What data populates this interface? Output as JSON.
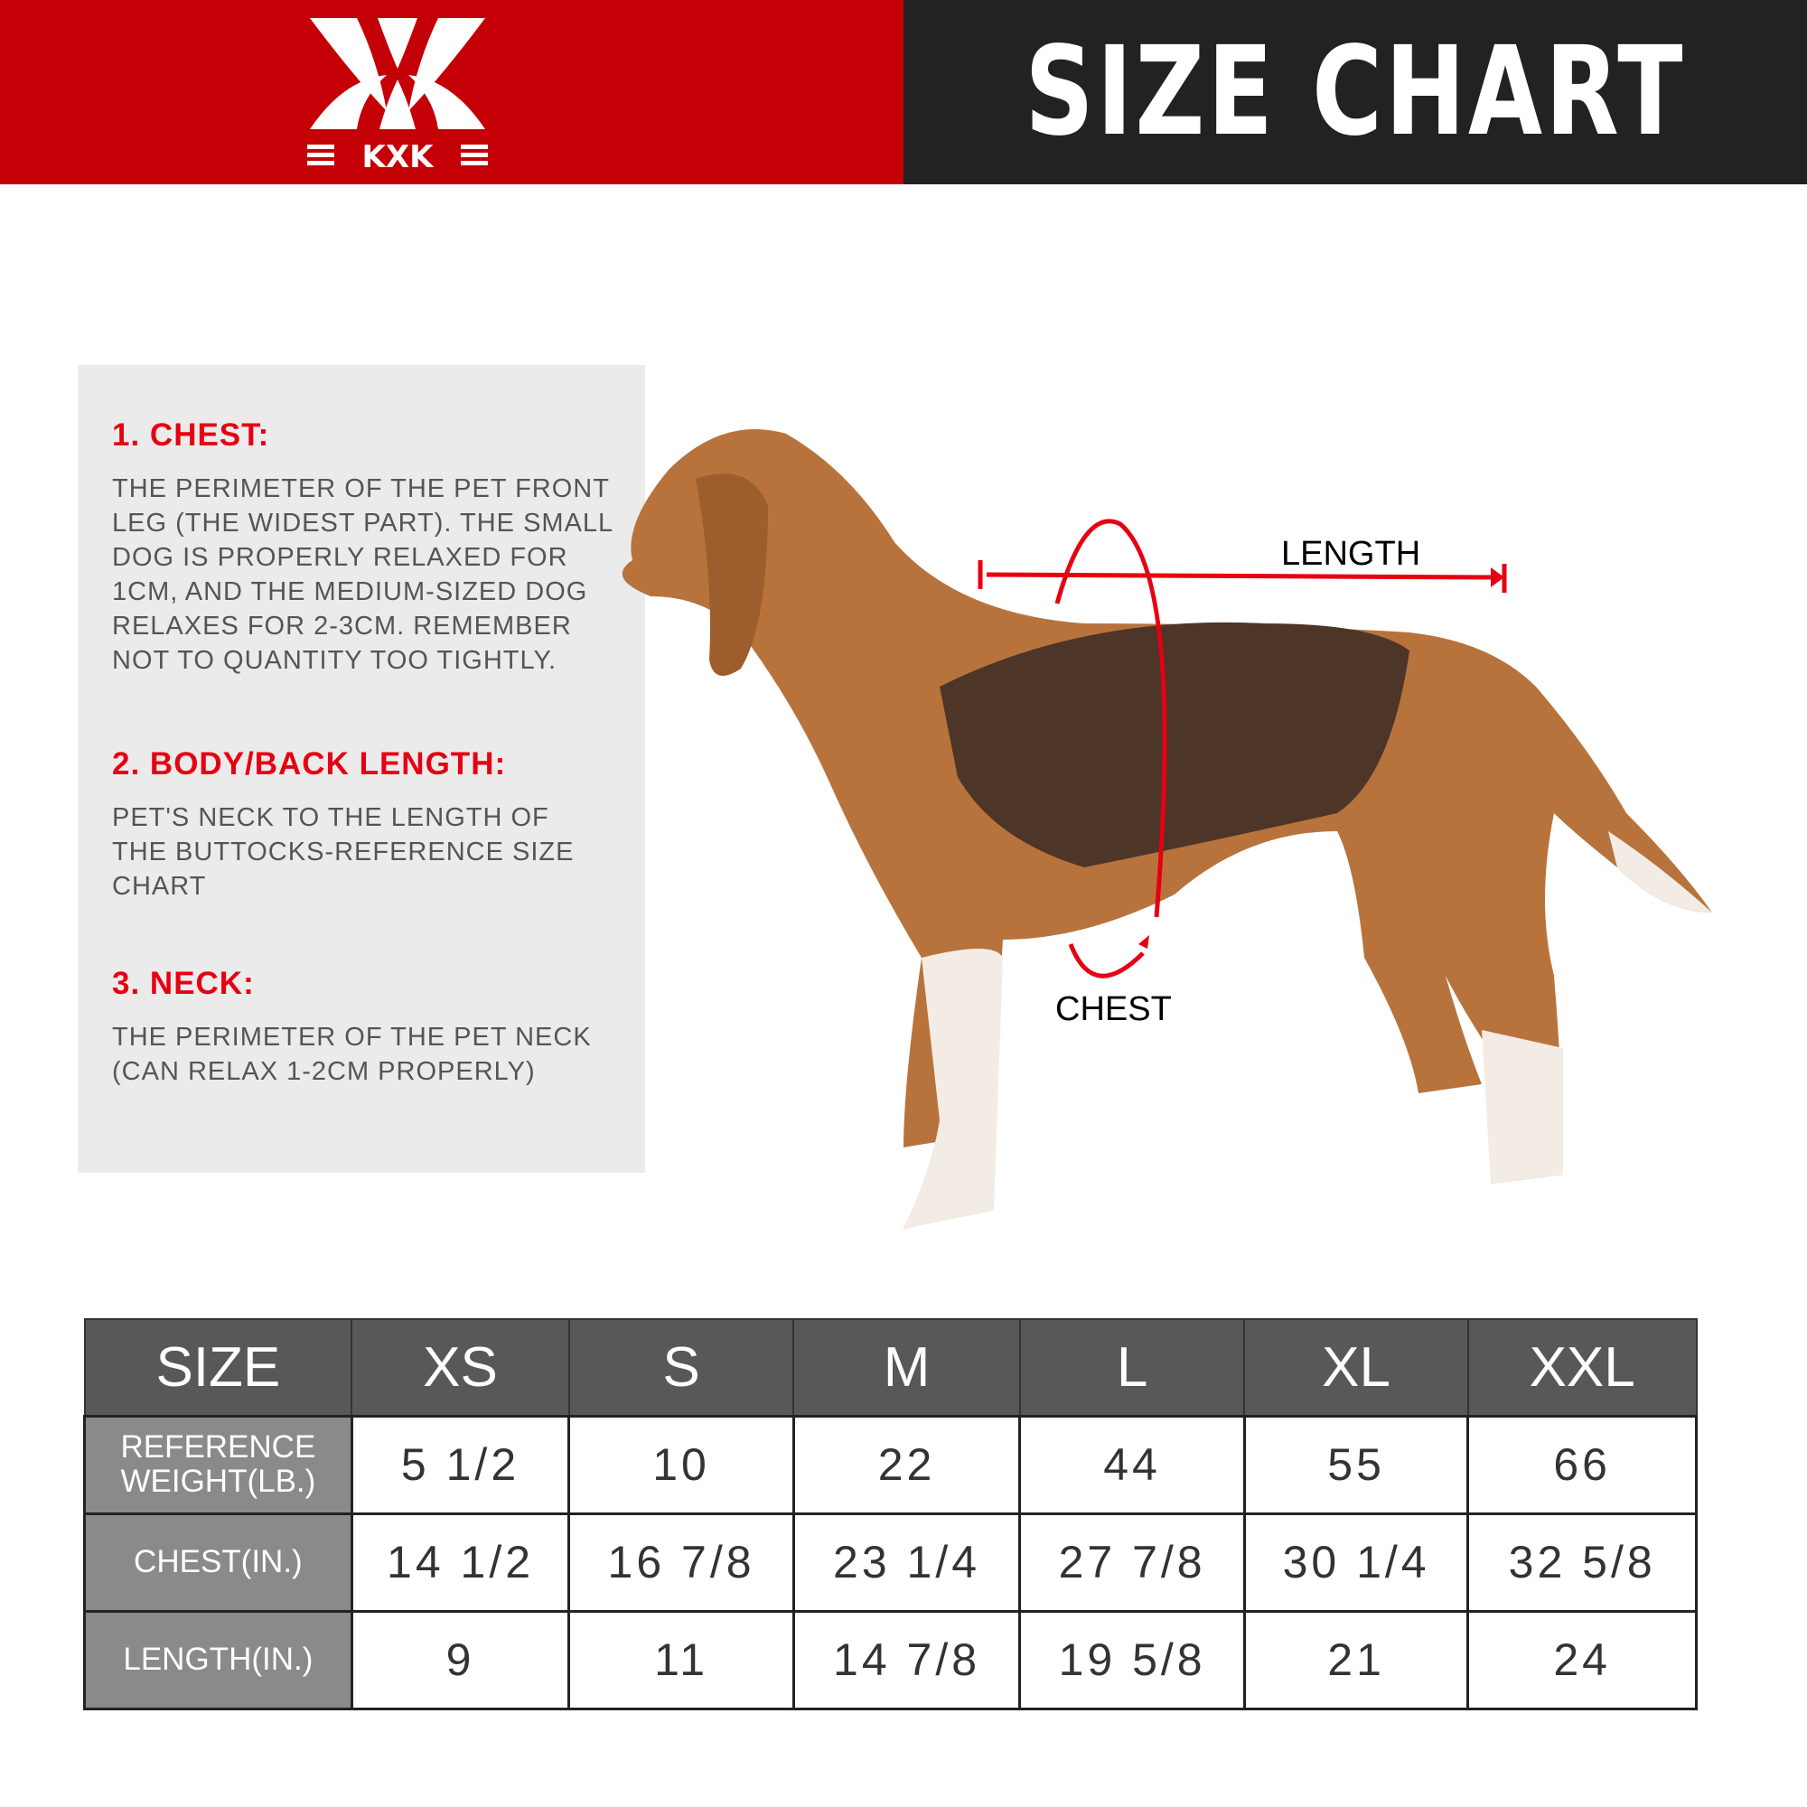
{
  "header": {
    "brand": "KXK",
    "title": "SIZE CHART",
    "colors": {
      "red": "#c40006",
      "dark": "#222222"
    }
  },
  "guide": [
    {
      "heading": "1. CHEST:",
      "text": "THE PERIMETER OF THE PET FRONT\nLEG (THE WIDEST PART). THE SMALL\nDOG IS PROPERLY RELAXED FOR\n1CM, AND THE MEDIUM-SIZED DOG\nRELAXES FOR 2-3CM. REMEMBER\nNOT TO QUANTITY TOO TIGHTLY."
    },
    {
      "heading": "2. BODY/BACK LENGTH:",
      "text": "PET'S NECK TO THE LENGTH OF\nTHE BUTTOCKS-REFERENCE SIZE\nCHART"
    },
    {
      "heading": "3. NECK:",
      "text": "THE PERIMETER OF THE PET NECK\n (CAN RELAX 1-2CM PROPERLY)"
    }
  ],
  "diagram": {
    "length_label": "LENGTH",
    "chest_label": "CHEST"
  },
  "table": {
    "headers": [
      "SIZE",
      "XS",
      "S",
      "M",
      "L",
      "XL",
      "XXL"
    ],
    "rows": [
      {
        "label": "REFERENCE WEIGHT(LB.)",
        "values": [
          "5 1/2",
          "10",
          "22",
          "44",
          "55",
          "66"
        ]
      },
      {
        "label": "CHEST(IN.)",
        "values": [
          "14 1/2",
          "16 7/8",
          "23 1/4",
          "27 7/8",
          "30 1/4",
          "32 5/8"
        ]
      },
      {
        "label": "LENGTH(IN.)",
        "values": [
          "9",
          "11",
          "14 7/8",
          "19 5/8",
          "21",
          "24"
        ]
      }
    ]
  }
}
